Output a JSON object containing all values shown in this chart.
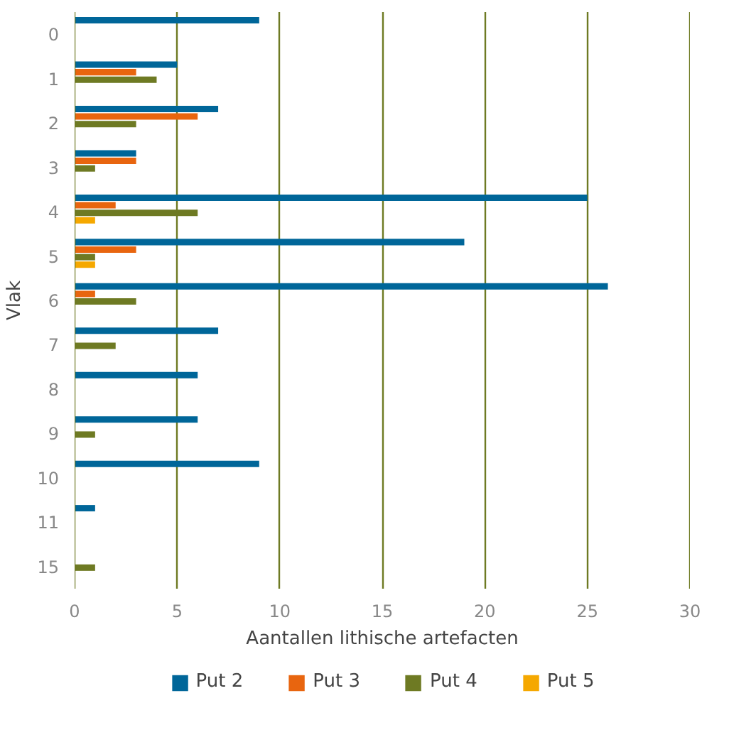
{
  "chart_data": {
    "type": "bar",
    "orientation": "horizontal",
    "xlabel": "Aantallen lithische artefacten",
    "ylabel": "Vlak",
    "categories": [
      "0",
      "1",
      "2",
      "3",
      "4",
      "5",
      "6",
      "7",
      "8",
      "9",
      "10",
      "11",
      "15"
    ],
    "series": [
      {
        "name": "Put 2",
        "color": "#006699",
        "values": [
          9,
          5,
          7,
          3,
          25,
          19,
          26,
          7,
          6,
          6,
          9,
          1,
          null
        ]
      },
      {
        "name": "Put 3",
        "color": "#e8650f",
        "values": [
          null,
          3,
          6,
          3,
          2,
          3,
          1,
          null,
          null,
          null,
          null,
          null,
          null
        ]
      },
      {
        "name": "Put 4",
        "color": "#6e7a23",
        "values": [
          null,
          4,
          3,
          1,
          6,
          1,
          3,
          2,
          null,
          1,
          null,
          null,
          1
        ]
      },
      {
        "name": "Put 5",
        "color": "#f5a800",
        "values": [
          null,
          null,
          null,
          null,
          1,
          1,
          null,
          null,
          null,
          null,
          null,
          null,
          null
        ]
      }
    ],
    "xlim": [
      0,
      30
    ],
    "xticks": [
      0,
      5,
      10,
      15,
      20,
      25,
      30
    ],
    "grid": "x",
    "legend": "bottom"
  }
}
